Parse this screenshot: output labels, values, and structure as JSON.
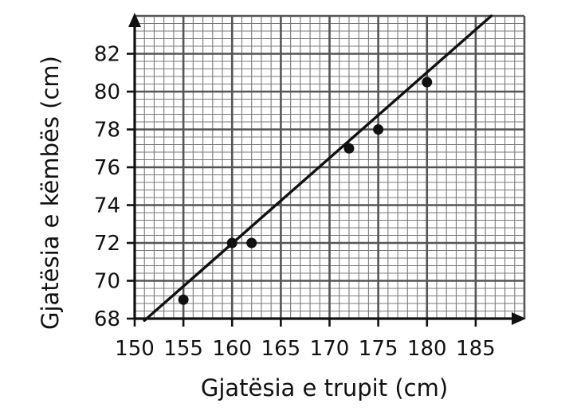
{
  "chart_data": {
    "type": "scatter",
    "xlabel": "Gjatësia e trupit (cm)",
    "ylabel": "Gjatësia e këmbës (cm)",
    "xlim": [
      150,
      190
    ],
    "ylim": [
      68,
      84
    ],
    "x_ticks": [
      150,
      155,
      160,
      165,
      170,
      175,
      180,
      185
    ],
    "y_ticks": [
      68,
      70,
      72,
      74,
      76,
      78,
      80,
      82
    ],
    "x_tick_labels": [
      "150",
      "155",
      "160",
      "165",
      "170",
      "175",
      "180",
      "185"
    ],
    "y_tick_labels": [
      "68",
      "70",
      "72",
      "74",
      "76",
      "78",
      "80",
      "82"
    ],
    "grid": true,
    "minor_grid": {
      "x_step": 1,
      "y_step": 0.4
    },
    "points": [
      {
        "x": 155,
        "y": 69
      },
      {
        "x": 160,
        "y": 72
      },
      {
        "x": 162,
        "y": 72
      },
      {
        "x": 172,
        "y": 77
      },
      {
        "x": 175,
        "y": 78
      },
      {
        "x": 180,
        "y": 80.5
      }
    ],
    "trend_line": {
      "x1": 151,
      "y1": 67.9,
      "x2": 186.6,
      "y2": 84
    },
    "colors": {
      "grid": "#7a7a7a",
      "ink": "#111111",
      "background": "#ffffff"
    }
  }
}
